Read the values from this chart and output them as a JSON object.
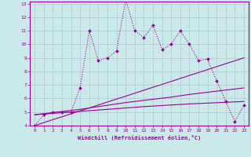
{
  "xlabel": "Windchill (Refroidissement éolien,°C)",
  "bg_color": "#cce9e9",
  "line_color": "#990099",
  "grid_color": "#b0c8c8",
  "x_values": [
    0,
    1,
    2,
    3,
    4,
    5,
    6,
    7,
    8,
    9,
    10,
    11,
    12,
    13,
    14,
    15,
    16,
    17,
    18,
    19,
    20,
    21,
    22,
    23
  ],
  "windchill": [
    4.0,
    4.8,
    5.0,
    5.0,
    5.0,
    6.8,
    11.0,
    8.8,
    9.0,
    9.5,
    13.3,
    11.0,
    10.5,
    11.4,
    9.6,
    10.0,
    11.0,
    10.0,
    8.8,
    8.9,
    7.3,
    5.8,
    4.3,
    5.5
  ],
  "line_upper": [
    4.0,
    4.22,
    4.44,
    4.65,
    4.87,
    5.09,
    5.3,
    5.52,
    5.74,
    5.96,
    6.17,
    6.39,
    6.61,
    6.83,
    7.04,
    7.26,
    7.48,
    7.7,
    7.91,
    8.13,
    8.35,
    8.57,
    8.78,
    9.0
  ],
  "line_mid": [
    4.8,
    4.88,
    4.96,
    5.04,
    5.12,
    5.2,
    5.3,
    5.4,
    5.5,
    5.6,
    5.7,
    5.78,
    5.86,
    5.94,
    6.02,
    6.1,
    6.2,
    6.3,
    6.38,
    6.46,
    6.54,
    6.62,
    6.7,
    6.78
  ],
  "line_lower": [
    4.8,
    4.85,
    4.9,
    4.95,
    5.0,
    5.05,
    5.1,
    5.15,
    5.2,
    5.25,
    5.3,
    5.35,
    5.4,
    5.44,
    5.48,
    5.52,
    5.56,
    5.6,
    5.63,
    5.66,
    5.69,
    5.72,
    5.75,
    5.78
  ],
  "ylim": [
    4,
    13
  ],
  "xlim": [
    -0.5,
    23.5
  ],
  "yticks": [
    4,
    5,
    6,
    7,
    8,
    9,
    10,
    11,
    12,
    13
  ],
  "xticks": [
    0,
    1,
    2,
    3,
    4,
    5,
    6,
    7,
    8,
    9,
    10,
    11,
    12,
    13,
    14,
    15,
    16,
    17,
    18,
    19,
    20,
    21,
    22,
    23
  ]
}
